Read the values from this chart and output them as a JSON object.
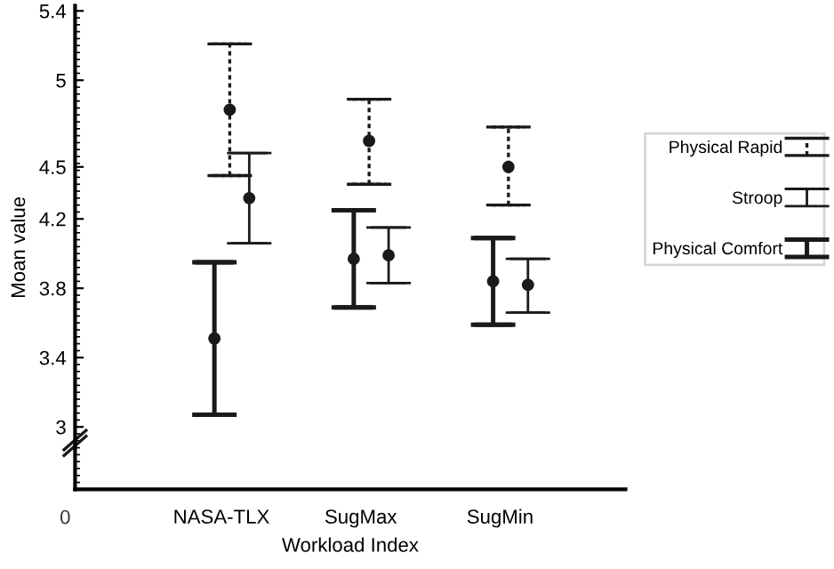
{
  "chart_data": {
    "type": "scatter",
    "xlabel": "Workload Index",
    "ylabel": "Moan value",
    "categories": [
      "NASA-TLX",
      "SugMax",
      "SugMin"
    ],
    "series": [
      {
        "name": "Physical Rapid",
        "color": "#1a1a1a",
        "line_style": "dashed",
        "values": [
          4.83,
          4.65,
          4.5
        ],
        "errors": [
          [
            4.45,
            5.21
          ],
          [
            4.4,
            4.89
          ],
          [
            4.28,
            4.73
          ]
        ]
      },
      {
        "name": "Stroop",
        "color": "#1a1a1a",
        "line_style": "solid",
        "values": [
          4.32,
          3.99,
          3.82
        ],
        "errors": [
          [
            4.06,
            4.58
          ],
          [
            3.83,
            4.15
          ],
          [
            3.66,
            3.97
          ]
        ]
      },
      {
        "name": "Physical Comfort",
        "color": "#1a1a1a",
        "line_style": "solid",
        "values": [
          3.51,
          3.97,
          3.84
        ],
        "errors": [
          [
            3.07,
            3.95
          ],
          [
            3.69,
            4.25
          ],
          [
            3.59,
            4.09
          ]
        ]
      }
    ],
    "ylim": [
      2.64,
      5.43
    ],
    "yticks": [
      3,
      3.4,
      3.8,
      4.2,
      4.5,
      5,
      5.4
    ],
    "annotations": [
      "0"
    ],
    "marker": "circle",
    "grid": false,
    "legend": "right"
  }
}
